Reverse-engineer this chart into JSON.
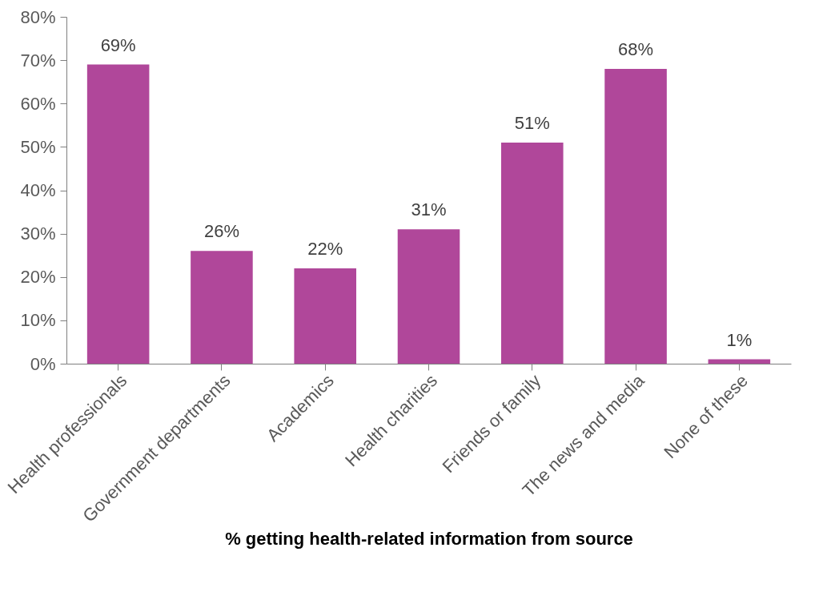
{
  "chart_data": {
    "type": "bar",
    "xlabel": "% getting health-related information from source",
    "categories": [
      "Health professionals",
      "Government departments",
      "Academics",
      "Health charities",
      "Friends or family",
      "The news and media",
      "None of these"
    ],
    "values": [
      69,
      26,
      22,
      31,
      51,
      68,
      1
    ],
    "value_labels": [
      "69%",
      "26%",
      "22%",
      "31%",
      "51%",
      "68%",
      "1%"
    ],
    "color": "#b0479a",
    "ylim": [
      0,
      80
    ],
    "yticks": [
      {
        "value": 0,
        "label": "0%"
      },
      {
        "value": 10,
        "label": "10%"
      },
      {
        "value": 20,
        "label": "20%"
      },
      {
        "value": 30,
        "label": "30%"
      },
      {
        "value": 40,
        "label": "40%"
      },
      {
        "value": 50,
        "label": "50%"
      },
      {
        "value": 60,
        "label": "60%"
      },
      {
        "value": 70,
        "label": "70%"
      },
      {
        "value": 80,
        "label": "80%"
      }
    ],
    "grid": false
  }
}
